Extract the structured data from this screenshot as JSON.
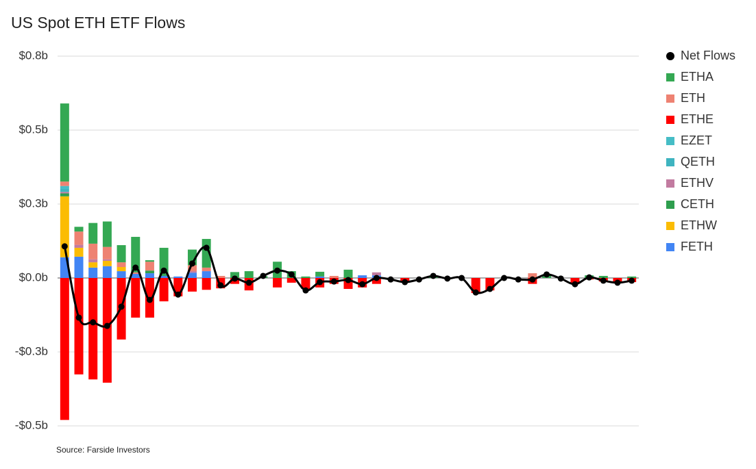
{
  "chart_data": {
    "type": "bar",
    "stacked": true,
    "title": "US Spot ETH ETF Flows",
    "source": "Source: Farside Investors",
    "categories": [
      null,
      null,
      null,
      null,
      null,
      null,
      null,
      null,
      null,
      null,
      null,
      null,
      null,
      null,
      null,
      null,
      null,
      null,
      null,
      null,
      null,
      null,
      null,
      null,
      null,
      null,
      null,
      null,
      null,
      null,
      null,
      null,
      null,
      null,
      null,
      null,
      null,
      null,
      null,
      null,
      null
    ],
    "ylim": [
      -0.5,
      0.75
    ],
    "yticks": [
      {
        "value": 0.75,
        "label": "$0.8b"
      },
      {
        "value": 0.5,
        "label": "$0.5b"
      },
      {
        "value": 0.25,
        "label": "$0.3b"
      },
      {
        "value": 0,
        "label": "$0.0b"
      },
      {
        "value": -0.25,
        "label": "-$0.3b"
      },
      {
        "value": -0.5,
        "label": "-$0.5b"
      }
    ],
    "grid": true,
    "legend": "right",
    "series": [
      {
        "name": "Net Flows",
        "type": "line",
        "color": "#000000",
        "values": [
          0.107,
          -0.134,
          -0.15,
          -0.162,
          -0.097,
          0.035,
          -0.074,
          0.025,
          -0.056,
          0.049,
          0.102,
          -0.025,
          -0.002,
          -0.016,
          0.007,
          0.025,
          0.012,
          -0.042,
          -0.014,
          -0.012,
          -0.007,
          -0.021,
          0,
          -0.005,
          -0.014,
          -0.005,
          0.007,
          -0.002,
          0,
          -0.049,
          -0.037,
          0,
          -0.005,
          -0.005,
          0.012,
          -0.002,
          -0.021,
          0.002,
          -0.009,
          -0.016,
          -0.009
        ]
      },
      {
        "name": "ETHA",
        "color": "#34a853",
        "values": [
          0.264,
          0.016,
          0.07,
          0.086,
          0.058,
          0.12,
          0.005,
          0.095,
          0,
          0.053,
          0.097,
          0,
          0.02,
          0.023,
          0.006,
          0.055,
          0.023,
          0.005,
          0.016,
          0,
          0.028,
          0,
          0,
          0,
          0,
          0,
          0.005,
          0,
          0,
          0,
          0,
          0,
          0,
          0,
          0.012,
          0,
          0,
          0.009,
          0.007,
          0,
          0.005
        ]
      },
      {
        "name": "ETH",
        "color": "#ee8272",
        "values": [
          0.015,
          0.045,
          0.053,
          0.042,
          0.016,
          0.005,
          0.03,
          0,
          0,
          0.02,
          0.012,
          0.007,
          0,
          0,
          0,
          0,
          0,
          0,
          0,
          0.007,
          0,
          0,
          0,
          0,
          0,
          0,
          0,
          0,
          0,
          0,
          0,
          0,
          0,
          0.016,
          0,
          0,
          0,
          0,
          0,
          0,
          0
        ]
      },
      {
        "name": "ETHE",
        "color": "#ff0000",
        "values": [
          -0.48,
          -0.326,
          -0.343,
          -0.354,
          -0.208,
          -0.134,
          -0.134,
          -0.079,
          -0.062,
          -0.046,
          -0.04,
          -0.035,
          -0.02,
          -0.042,
          0,
          -0.032,
          -0.016,
          -0.037,
          -0.032,
          -0.02,
          -0.037,
          -0.032,
          -0.02,
          0,
          -0.01,
          0,
          0,
          0,
          0,
          -0.051,
          -0.042,
          0,
          0,
          -0.02,
          0,
          0,
          -0.016,
          -0.005,
          -0.012,
          -0.014,
          -0.014
        ]
      },
      {
        "name": "EZET",
        "color": "#46bdc6",
        "values": [
          0.01,
          0,
          0,
          0,
          0,
          0,
          0,
          0,
          0,
          0,
          0,
          0,
          0,
          0,
          0,
          0,
          0,
          0,
          0,
          0,
          0,
          0,
          0,
          0,
          0,
          0,
          0,
          0,
          0,
          0,
          0,
          0,
          0,
          0,
          0,
          0,
          0,
          0,
          0,
          0,
          0
        ]
      },
      {
        "name": "QETH",
        "color": "#3fb4c0",
        "values": [
          0.01,
          0,
          0,
          0,
          0,
          0,
          0,
          0,
          0,
          0,
          0,
          0,
          0,
          0,
          0,
          0,
          0,
          0,
          0,
          0,
          0,
          0,
          0,
          0,
          0,
          0,
          0,
          0,
          0,
          0,
          0,
          0,
          0,
          0,
          0,
          0,
          0,
          0,
          0,
          0,
          0
        ]
      },
      {
        "name": "ETHV",
        "color": "#c27ba0",
        "values": [
          0.005,
          0.01,
          0.01,
          0.005,
          0,
          0,
          0,
          0,
          0,
          0.005,
          0,
          0,
          0,
          0,
          0,
          0,
          0,
          0,
          0,
          0,
          0,
          0,
          0.01,
          0,
          0,
          0,
          0,
          0,
          0,
          0,
          0,
          0,
          0,
          0,
          0,
          0,
          0,
          0,
          0,
          0,
          0
        ]
      },
      {
        "name": "CETH",
        "color": "#2e9e4e",
        "values": [
          0.01,
          0,
          0,
          0,
          0,
          0,
          0.009,
          0,
          0,
          0,
          0,
          0,
          0,
          0,
          0,
          0,
          0,
          0,
          0,
          0,
          0,
          0,
          0,
          0,
          0,
          0,
          0,
          0,
          0,
          0,
          0,
          0,
          0,
          0,
          0,
          0,
          0,
          0,
          0,
          0,
          0
        ]
      },
      {
        "name": "ETHW",
        "color": "#fbbc04",
        "values": [
          0.206,
          0.03,
          0.018,
          0.018,
          0.014,
          0,
          0,
          0,
          0,
          0,
          0,
          0,
          0,
          0,
          0,
          0,
          0,
          0,
          0,
          0,
          0,
          0,
          0,
          0,
          0,
          0,
          0,
          0,
          0,
          0,
          0,
          0,
          0,
          0,
          0,
          0,
          0,
          0,
          0,
          0,
          0
        ]
      },
      {
        "name": "FETH",
        "color": "#4285f4",
        "values": [
          0.07,
          0.072,
          0.035,
          0.04,
          0.023,
          0.014,
          0.016,
          0.007,
          0.005,
          0.018,
          0.023,
          0,
          0,
          0,
          0,
          0,
          0,
          0,
          0.005,
          0,
          0,
          0.009,
          0.009,
          0,
          0,
          0,
          0,
          0,
          0,
          0,
          0,
          0,
          0,
          0,
          0,
          0,
          0,
          0,
          0,
          0,
          0
        ]
      }
    ]
  }
}
